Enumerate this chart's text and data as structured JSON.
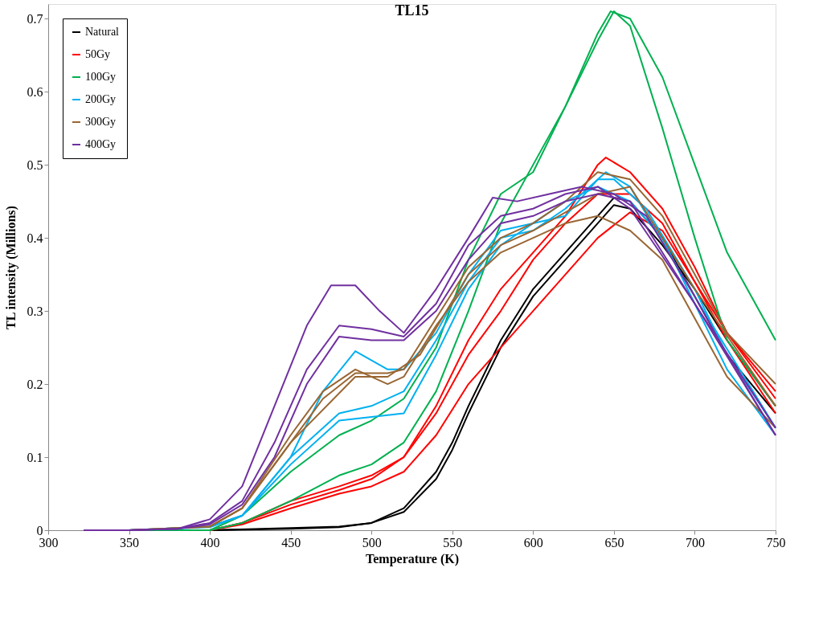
{
  "chart_data": {
    "type": "line",
    "title": "TL15",
    "xlabel": "Temperature (K)",
    "ylabel": "TL intensity (Millions)",
    "xlim": [
      300,
      750
    ],
    "xticks": [
      300,
      350,
      400,
      450,
      500,
      550,
      600,
      650,
      700,
      750
    ],
    "ylim": [
      0,
      0.72
    ],
    "yticks": [
      0,
      0.1,
      0.2,
      0.3,
      0.4,
      0.5,
      0.6,
      0.7
    ],
    "grid": false,
    "legend": "top left",
    "series": [
      {
        "name": "Natural",
        "color": "#000000",
        "x": [
          322,
          350,
          400,
          450,
          480,
          500,
          520,
          540,
          550,
          560,
          580,
          600,
          620,
          640,
          650,
          660,
          680,
          700,
          720,
          750
        ],
        "values": [
          0,
          0,
          0,
          0.003,
          0.005,
          0.01,
          0.03,
          0.08,
          0.12,
          0.17,
          0.26,
          0.33,
          0.38,
          0.43,
          0.455,
          0.45,
          0.4,
          0.32,
          0.24,
          0.16
        ]
      },
      {
        "color": "#000000",
        "x": [
          322,
          350,
          400,
          450,
          480,
          500,
          520,
          540,
          550,
          560,
          580,
          600,
          620,
          640,
          650,
          660,
          680,
          700,
          720,
          750
        ],
        "values": [
          0,
          0,
          0,
          0.002,
          0.004,
          0.01,
          0.025,
          0.07,
          0.11,
          0.16,
          0.25,
          0.32,
          0.37,
          0.42,
          0.445,
          0.44,
          0.39,
          0.33,
          0.26,
          0.17
        ]
      },
      {
        "name": "50Gy",
        "color": "#ff0000",
        "x": [
          322,
          350,
          400,
          420,
          450,
          480,
          500,
          520,
          540,
          560,
          580,
          600,
          620,
          640,
          645,
          660,
          680,
          700,
          720,
          750
        ],
        "values": [
          0,
          0,
          0,
          0.01,
          0.035,
          0.055,
          0.07,
          0.1,
          0.17,
          0.26,
          0.33,
          0.38,
          0.43,
          0.5,
          0.51,
          0.49,
          0.44,
          0.36,
          0.27,
          0.18
        ]
      },
      {
        "color": "#ff0000",
        "x": [
          322,
          350,
          400,
          420,
          450,
          480,
          500,
          520,
          540,
          560,
          580,
          600,
          620,
          640,
          660,
          680,
          700,
          720,
          750
        ],
        "values": [
          0,
          0,
          0,
          0.008,
          0.03,
          0.05,
          0.06,
          0.08,
          0.13,
          0.2,
          0.25,
          0.3,
          0.35,
          0.4,
          0.435,
          0.41,
          0.34,
          0.27,
          0.19
        ]
      },
      {
        "color": "#ff0000",
        "x": [
          322,
          350,
          400,
          420,
          450,
          480,
          500,
          520,
          540,
          560,
          580,
          600,
          620,
          640,
          660,
          680,
          700,
          720,
          750
        ],
        "values": [
          0,
          0,
          0,
          0.01,
          0.04,
          0.06,
          0.075,
          0.1,
          0.16,
          0.24,
          0.3,
          0.37,
          0.42,
          0.46,
          0.46,
          0.42,
          0.34,
          0.26,
          0.16
        ]
      },
      {
        "name": "100Gy",
        "color": "#00b050",
        "x": [
          322,
          350,
          400,
          420,
          450,
          480,
          500,
          520,
          540,
          560,
          580,
          600,
          620,
          640,
          648,
          660,
          680,
          700,
          720,
          750
        ],
        "values": [
          0,
          0,
          0,
          0.01,
          0.04,
          0.075,
          0.09,
          0.12,
          0.19,
          0.3,
          0.42,
          0.5,
          0.58,
          0.68,
          0.71,
          0.7,
          0.62,
          0.5,
          0.38,
          0.26
        ]
      },
      {
        "color": "#00b050",
        "x": [
          322,
          350,
          400,
          420,
          450,
          480,
          500,
          520,
          540,
          560,
          580,
          600,
          620,
          640,
          650,
          660,
          680,
          700,
          720,
          750
        ],
        "values": [
          0,
          0,
          0,
          0.02,
          0.08,
          0.13,
          0.15,
          0.18,
          0.25,
          0.37,
          0.46,
          0.49,
          0.58,
          0.67,
          0.71,
          0.69,
          0.55,
          0.4,
          0.26,
          0.17
        ]
      },
      {
        "name": "200Gy",
        "color": "#00b0f0",
        "x": [
          322,
          350,
          400,
          420,
          450,
          470,
          490,
          510,
          520,
          540,
          560,
          580,
          600,
          620,
          640,
          650,
          670,
          700,
          720,
          750
        ],
        "values": [
          0,
          0,
          0.005,
          0.02,
          0.1,
          0.19,
          0.245,
          0.22,
          0.22,
          0.27,
          0.35,
          0.41,
          0.42,
          0.43,
          0.48,
          0.48,
          0.44,
          0.33,
          0.24,
          0.14
        ]
      },
      {
        "color": "#00b0f0",
        "x": [
          322,
          350,
          400,
          420,
          450,
          480,
          500,
          520,
          540,
          560,
          580,
          600,
          620,
          640,
          660,
          680,
          700,
          720,
          750
        ],
        "values": [
          0,
          0,
          0.004,
          0.02,
          0.09,
          0.15,
          0.155,
          0.16,
          0.24,
          0.33,
          0.39,
          0.42,
          0.45,
          0.47,
          0.45,
          0.4,
          0.31,
          0.22,
          0.13
        ]
      },
      {
        "color": "#00b0f0",
        "x": [
          322,
          350,
          400,
          420,
          450,
          480,
          500,
          520,
          540,
          560,
          580,
          600,
          620,
          645,
          660,
          700,
          750
        ],
        "values": [
          0,
          0,
          0.005,
          0.02,
          0.1,
          0.16,
          0.17,
          0.19,
          0.26,
          0.34,
          0.4,
          0.41,
          0.44,
          0.49,
          0.47,
          0.32,
          0.14
        ]
      },
      {
        "name": "300Gy",
        "color": "#996633",
        "x": [
          322,
          350,
          400,
          420,
          450,
          470,
          490,
          510,
          520,
          540,
          560,
          580,
          600,
          620,
          640,
          660,
          680,
          700,
          720,
          750
        ],
        "values": [
          0,
          0,
          0.005,
          0.03,
          0.13,
          0.19,
          0.22,
          0.2,
          0.21,
          0.28,
          0.34,
          0.38,
          0.4,
          0.42,
          0.43,
          0.41,
          0.37,
          0.29,
          0.21,
          0.14
        ]
      },
      {
        "color": "#996633",
        "x": [
          322,
          350,
          400,
          420,
          450,
          470,
          490,
          510,
          520,
          540,
          560,
          580,
          600,
          620,
          640,
          660,
          680,
          700,
          720,
          750
        ],
        "values": [
          0,
          0,
          0.005,
          0.03,
          0.12,
          0.18,
          0.215,
          0.215,
          0.22,
          0.29,
          0.36,
          0.4,
          0.42,
          0.45,
          0.49,
          0.48,
          0.43,
          0.35,
          0.27,
          0.2
        ]
      },
      {
        "color": "#996633",
        "x": [
          322,
          350,
          400,
          420,
          450,
          490,
          510,
          530,
          560,
          580,
          600,
          640,
          660,
          700,
          750
        ],
        "values": [
          0,
          0,
          0.005,
          0.03,
          0.12,
          0.21,
          0.21,
          0.24,
          0.35,
          0.39,
          0.41,
          0.46,
          0.47,
          0.33,
          0.17
        ]
      },
      {
        "name": "400Gy",
        "color": "#7030a0",
        "x": [
          322,
          350,
          380,
          400,
          420,
          440,
          460,
          475,
          490,
          505,
          520,
          540,
          560,
          575,
          590,
          610,
          630,
          650,
          670,
          700,
          720,
          750
        ],
        "values": [
          0,
          0,
          0.002,
          0.015,
          0.06,
          0.17,
          0.28,
          0.335,
          0.335,
          0.3,
          0.27,
          0.33,
          0.4,
          0.455,
          0.45,
          0.46,
          0.47,
          0.46,
          0.43,
          0.32,
          0.24,
          0.13
        ]
      },
      {
        "color": "#7030a0",
        "x": [
          322,
          350,
          380,
          400,
          420,
          440,
          460,
          480,
          500,
          520,
          540,
          560,
          580,
          600,
          620,
          640,
          660,
          700,
          750
        ],
        "values": [
          0,
          0,
          0.002,
          0.01,
          0.04,
          0.12,
          0.22,
          0.28,
          0.275,
          0.265,
          0.31,
          0.39,
          0.43,
          0.44,
          0.46,
          0.47,
          0.44,
          0.31,
          0.13
        ]
      },
      {
        "color": "#7030a0",
        "x": [
          322,
          350,
          380,
          400,
          420,
          440,
          460,
          480,
          500,
          520,
          540,
          560,
          580,
          600,
          620,
          640,
          660,
          700,
          750
        ],
        "values": [
          0,
          0,
          0.002,
          0.008,
          0.035,
          0.1,
          0.2,
          0.265,
          0.26,
          0.26,
          0.3,
          0.37,
          0.42,
          0.43,
          0.45,
          0.46,
          0.45,
          0.31,
          0.14
        ]
      }
    ]
  }
}
